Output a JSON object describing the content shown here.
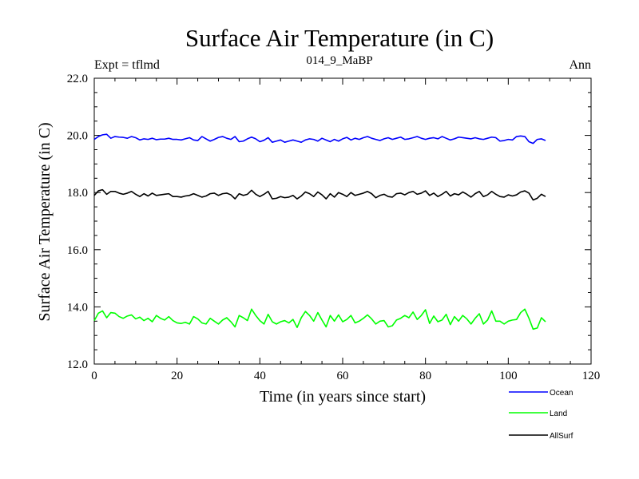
{
  "chart_data": {
    "type": "line",
    "title": "Surface Air Temperature (in C)",
    "subtitle": "014_9_MaBP",
    "expt_label": "Expt = tflmd",
    "period_label": "Ann",
    "xlabel": "Time (in years since start)",
    "ylabel": "Surface Air Temperature (in C)",
    "xlim": [
      0,
      120
    ],
    "ylim": [
      12.0,
      22.0
    ],
    "x_ticks": [
      0,
      20,
      40,
      60,
      80,
      100,
      120
    ],
    "x_tick_labels": [
      "0",
      "20",
      "40",
      "60",
      "80",
      "100",
      "120"
    ],
    "y_ticks": [
      12.0,
      14.0,
      16.0,
      18.0,
      20.0,
      22.0
    ],
    "y_tick_labels": [
      "12.0",
      "14.0",
      "16.0",
      "18.0",
      "20.0",
      "22.0"
    ],
    "legend_position": "bottom-right",
    "series": [
      {
        "name": "Ocean",
        "color": "#0000ff",
        "x_start": 0,
        "x_step": 1,
        "values": [
          19.86,
          19.96,
          20.02,
          20.04,
          19.9,
          19.96,
          19.94,
          19.93,
          19.9,
          19.96,
          19.92,
          19.84,
          19.88,
          19.86,
          19.9,
          19.85,
          19.87,
          19.87,
          19.9,
          19.86,
          19.86,
          19.84,
          19.88,
          19.92,
          19.84,
          19.82,
          19.96,
          19.88,
          19.8,
          19.86,
          19.93,
          19.96,
          19.9,
          19.86,
          19.96,
          19.78,
          19.8,
          19.88,
          19.94,
          19.88,
          19.78,
          19.83,
          19.92,
          19.76,
          19.8,
          19.84,
          19.76,
          19.8,
          19.84,
          19.8,
          19.76,
          19.84,
          19.88,
          19.86,
          19.8,
          19.9,
          19.84,
          19.78,
          19.86,
          19.8,
          19.88,
          19.93,
          19.84,
          19.9,
          19.86,
          19.92,
          19.96,
          19.9,
          19.86,
          19.82,
          19.88,
          19.92,
          19.86,
          19.9,
          19.94,
          19.86,
          19.88,
          19.92,
          19.96,
          19.9,
          19.86,
          19.9,
          19.92,
          19.88,
          19.96,
          19.9,
          19.84,
          19.88,
          19.94,
          19.92,
          19.9,
          19.88,
          19.92,
          19.88,
          19.86,
          19.9,
          19.94,
          19.92,
          19.8,
          19.82,
          19.86,
          19.84,
          19.96,
          19.98,
          19.96,
          19.78,
          19.72,
          19.86,
          19.88,
          19.82
        ]
      },
      {
        "name": "Land",
        "color": "#00ff00",
        "x_start": 0,
        "x_step": 1,
        "values": [
          13.52,
          13.78,
          13.86,
          13.62,
          13.8,
          13.78,
          13.66,
          13.6,
          13.68,
          13.72,
          13.58,
          13.64,
          13.52,
          13.6,
          13.48,
          13.7,
          13.6,
          13.54,
          13.66,
          13.52,
          13.44,
          13.42,
          13.46,
          13.4,
          13.66,
          13.58,
          13.44,
          13.4,
          13.6,
          13.5,
          13.4,
          13.54,
          13.62,
          13.48,
          13.3,
          13.7,
          13.62,
          13.52,
          13.92,
          13.7,
          13.52,
          13.4,
          13.74,
          13.48,
          13.4,
          13.48,
          13.52,
          13.44,
          13.56,
          13.28,
          13.62,
          13.84,
          13.7,
          13.5,
          13.8,
          13.54,
          13.3,
          13.7,
          13.5,
          13.72,
          13.48,
          13.56,
          13.7,
          13.44,
          13.5,
          13.6,
          13.72,
          13.58,
          13.4,
          13.5,
          13.52,
          13.3,
          13.34,
          13.54,
          13.6,
          13.7,
          13.62,
          13.82,
          13.56,
          13.7,
          13.9,
          13.42,
          13.68,
          13.48,
          13.54,
          13.74,
          13.38,
          13.66,
          13.5,
          13.7,
          13.58,
          13.4,
          13.6,
          13.76,
          13.4,
          13.54,
          13.86,
          13.5,
          13.5,
          13.4,
          13.5,
          13.54,
          13.56,
          13.8,
          13.92,
          13.6,
          13.22,
          13.26,
          13.62,
          13.48
        ]
      },
      {
        "name": "AllSurf",
        "color": "#000000",
        "x_start": 0,
        "x_step": 1,
        "values": [
          17.9,
          18.06,
          18.1,
          17.94,
          18.04,
          18.04,
          17.98,
          17.94,
          17.98,
          18.04,
          17.94,
          17.86,
          17.96,
          17.88,
          17.98,
          17.9,
          17.92,
          17.94,
          17.96,
          17.86,
          17.86,
          17.84,
          17.88,
          17.9,
          17.96,
          17.9,
          17.84,
          17.88,
          17.96,
          17.98,
          17.9,
          17.96,
          17.98,
          17.92,
          17.78,
          17.96,
          17.9,
          17.94,
          18.08,
          17.94,
          17.86,
          17.94,
          18.04,
          17.78,
          17.8,
          17.86,
          17.82,
          17.84,
          17.9,
          17.78,
          17.88,
          18.02,
          17.96,
          17.86,
          18.02,
          17.92,
          17.78,
          17.96,
          17.84,
          18.0,
          17.94,
          17.86,
          18.0,
          17.9,
          17.94,
          17.98,
          18.04,
          17.96,
          17.82,
          17.9,
          17.94,
          17.86,
          17.84,
          17.96,
          17.98,
          17.92,
          18.0,
          18.04,
          17.94,
          17.98,
          18.06,
          17.9,
          17.98,
          17.86,
          17.94,
          18.04,
          17.88,
          17.96,
          17.92,
          18.02,
          17.94,
          17.84,
          17.96,
          18.04,
          17.86,
          17.92,
          18.04,
          17.94,
          17.86,
          17.84,
          17.92,
          17.88,
          17.92,
          18.02,
          18.06,
          17.98,
          17.74,
          17.8,
          17.94,
          17.86
        ]
      }
    ]
  }
}
